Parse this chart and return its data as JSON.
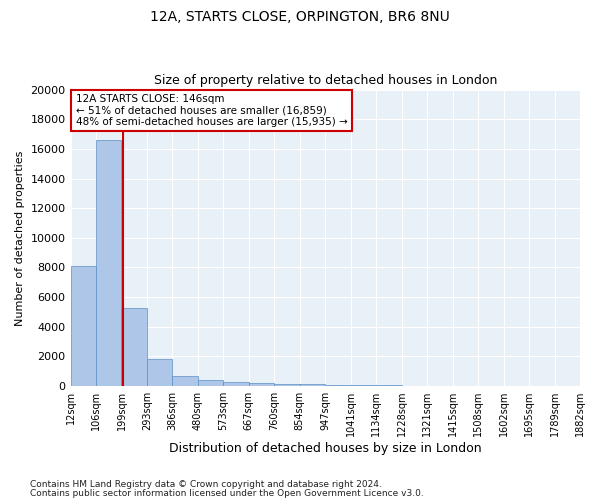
{
  "title1": "12A, STARTS CLOSE, ORPINGTON, BR6 8NU",
  "title2": "Size of property relative to detached houses in London",
  "xlabel": "Distribution of detached houses by size in London",
  "ylabel": "Number of detached properties",
  "bar_values": [
    8100,
    16600,
    5300,
    1850,
    700,
    380,
    280,
    200,
    160,
    120,
    80,
    60,
    40,
    30,
    20,
    15,
    10,
    8,
    5,
    3
  ],
  "bar_labels": [
    "12sqm",
    "106sqm",
    "199sqm",
    "293sqm",
    "386sqm",
    "480sqm",
    "573sqm",
    "667sqm",
    "760sqm",
    "854sqm",
    "947sqm",
    "1041sqm",
    "1134sqm",
    "1228sqm",
    "1321sqm",
    "1415sqm",
    "1508sqm",
    "1602sqm",
    "1695sqm",
    "1789sqm",
    "1882sqm"
  ],
  "bar_color": "#aec6e8",
  "bar_edge_color": "#5a8fc4",
  "vline_x": 1.55,
  "vline_color": "#cc0000",
  "annotation_text": "12A STARTS CLOSE: 146sqm\n← 51% of detached houses are smaller (16,859)\n48% of semi-detached houses are larger (15,935) →",
  "annotation_box_color": "#ffffff",
  "annotation_border_color": "#cc0000",
  "ylim": [
    0,
    20000
  ],
  "yticks": [
    0,
    2000,
    4000,
    6000,
    8000,
    10000,
    12000,
    14000,
    16000,
    18000,
    20000
  ],
  "background_color": "#e8f0f8",
  "grid_color": "#ffffff",
  "footnote1": "Contains HM Land Registry data © Crown copyright and database right 2024.",
  "footnote2": "Contains public sector information licensed under the Open Government Licence v3.0."
}
